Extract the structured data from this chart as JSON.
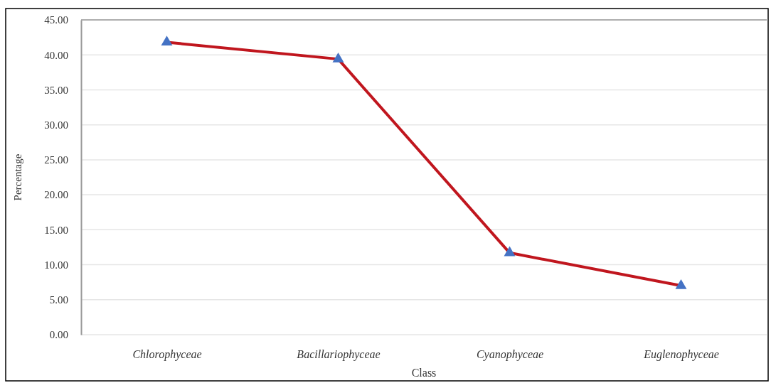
{
  "chart_data": {
    "type": "line",
    "xlabel": "Class",
    "ylabel": "Percentage",
    "categories": [
      "Chlorophyceae",
      "Bacillariophyceae",
      "Cyanophyceae",
      "Euglenophyceae"
    ],
    "series": [
      {
        "color": "#c0161e",
        "values": [
          41.8,
          39.4,
          11.7,
          7.0
        ]
      }
    ],
    "ylim": [
      0,
      45
    ],
    "yticks": [
      {
        "value": 0,
        "label": "0.00"
      },
      {
        "value": 5,
        "label": "5.00"
      },
      {
        "value": 10,
        "label": "10.00"
      },
      {
        "value": 15,
        "label": "15.00"
      },
      {
        "value": 20,
        "label": "20.00"
      },
      {
        "value": 25,
        "label": "25.00"
      },
      {
        "value": 30,
        "label": "30.00"
      },
      {
        "value": 35,
        "label": "35.00"
      },
      {
        "value": 40,
        "label": "40.00"
      },
      {
        "value": 45,
        "label": "45.00"
      }
    ],
    "grid": "y",
    "marker": "triangle",
    "line_style": "solid"
  }
}
